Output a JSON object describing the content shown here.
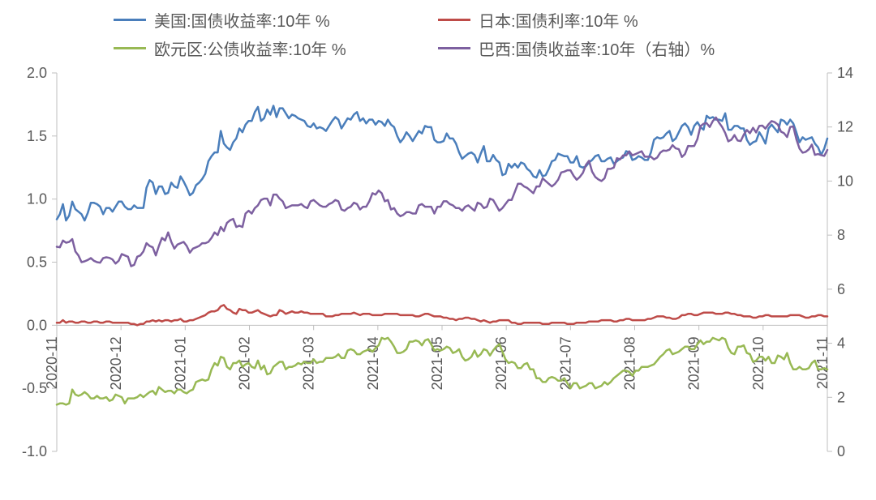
{
  "chart": {
    "type": "line",
    "background_color": "#ffffff",
    "axis_text_color": "#595959",
    "axis_line_color": "#bfbfbf",
    "line_width": 2.5,
    "label_fontsize": 18,
    "legend_fontsize": 20,
    "legend_position": "top",
    "left_axis": {
      "min": -1.0,
      "max": 2.0,
      "tick_step": 0.5,
      "ticks": [
        "2.0",
        "1.5",
        "1.0",
        "0.5",
        "0.0",
        "-0.5",
        "-1.0"
      ]
    },
    "right_axis": {
      "min": 0,
      "max": 14,
      "tick_step": 2,
      "ticks": [
        "14",
        "12",
        "10",
        "8",
        "6",
        "4",
        "2",
        "0"
      ]
    },
    "x_axis": {
      "labels": [
        "2020-11",
        "2020-12",
        "2021-01",
        "2021-02",
        "2021-03",
        "2021-04",
        "2021-05",
        "2021-06",
        "2021-07",
        "2021-08",
        "2021-09",
        "2021-10",
        "2021-11"
      ]
    },
    "series": [
      {
        "id": "us",
        "label": "美国:国债收益率:10年 %",
        "color": "#4a7ebb",
        "axis": "left",
        "values": [
          0.84,
          0.88,
          0.96,
          0.83,
          0.87,
          0.98,
          0.92,
          0.9,
          0.88,
          0.83,
          0.89,
          0.97,
          0.97,
          0.96,
          0.94,
          0.88,
          0.93,
          0.93,
          0.9,
          0.94,
          0.98,
          0.98,
          0.94,
          0.92,
          0.92,
          0.95,
          0.93,
          0.93,
          0.93,
          1.09,
          1.15,
          1.13,
          1.04,
          1.1,
          1.1,
          1.04,
          1.05,
          1.13,
          1.1,
          1.09,
          1.18,
          1.14,
          1.09,
          1.03,
          1.05,
          1.11,
          1.13,
          1.16,
          1.2,
          1.3,
          1.34,
          1.37,
          1.37,
          1.54,
          1.44,
          1.41,
          1.39,
          1.45,
          1.48,
          1.56,
          1.53,
          1.59,
          1.62,
          1.62,
          1.69,
          1.73,
          1.62,
          1.64,
          1.71,
          1.67,
          1.74,
          1.65,
          1.72,
          1.72,
          1.68,
          1.64,
          1.67,
          1.66,
          1.64,
          1.63,
          1.62,
          1.58,
          1.57,
          1.6,
          1.56,
          1.57,
          1.56,
          1.54,
          1.58,
          1.62,
          1.65,
          1.63,
          1.56,
          1.6,
          1.64,
          1.63,
          1.67,
          1.69,
          1.62,
          1.64,
          1.6,
          1.63,
          1.63,
          1.59,
          1.62,
          1.61,
          1.58,
          1.63,
          1.59,
          1.57,
          1.5,
          1.45,
          1.48,
          1.53,
          1.5,
          1.46,
          1.5,
          1.54,
          1.52,
          1.58,
          1.57,
          1.57,
          1.47,
          1.45,
          1.45,
          1.46,
          1.52,
          1.48,
          1.48,
          1.44,
          1.37,
          1.32,
          1.34,
          1.36,
          1.37,
          1.35,
          1.29,
          1.36,
          1.42,
          1.3,
          1.3,
          1.35,
          1.31,
          1.29,
          1.19,
          1.2,
          1.28,
          1.25,
          1.28,
          1.25,
          1.29,
          1.28,
          1.24,
          1.22,
          1.18,
          1.17,
          1.23,
          1.18,
          1.19,
          1.24,
          1.3,
          1.31,
          1.36,
          1.35,
          1.34,
          1.34,
          1.29,
          1.29,
          1.34,
          1.26,
          1.25,
          1.26,
          1.29,
          1.31,
          1.34,
          1.35,
          1.3,
          1.3,
          1.32,
          1.33,
          1.28,
          1.3,
          1.32,
          1.33,
          1.38,
          1.37,
          1.31,
          1.32,
          1.34,
          1.33,
          1.31,
          1.31,
          1.37,
          1.47,
          1.49,
          1.48,
          1.49,
          1.52,
          1.54,
          1.46,
          1.48,
          1.53,
          1.58,
          1.6,
          1.57,
          1.51,
          1.58,
          1.61,
          1.57,
          1.55,
          1.66,
          1.64,
          1.65,
          1.63,
          1.63,
          1.62,
          1.68,
          1.55,
          1.55,
          1.58,
          1.58,
          1.56,
          1.56,
          1.47,
          1.43,
          1.45,
          1.46,
          1.53,
          1.49,
          1.44,
          1.56,
          1.59,
          1.56,
          1.53,
          1.63,
          1.62,
          1.59,
          1.63,
          1.6,
          1.53,
          1.45,
          1.49,
          1.47,
          1.48,
          1.49,
          1.44,
          1.41,
          1.35,
          1.4,
          1.48
        ]
      },
      {
        "id": "japan",
        "label": "日本:国债利率:10年 %",
        "color": "#be4b48",
        "axis": "left",
        "values": [
          0.02,
          0.02,
          0.04,
          0.02,
          0.03,
          0.03,
          0.02,
          0.02,
          0.03,
          0.03,
          0.02,
          0.02,
          0.03,
          0.03,
          0.02,
          0.02,
          0.03,
          0.03,
          0.02,
          0.02,
          0.02,
          0.02,
          0.02,
          0.02,
          0.01,
          0.01,
          0.0,
          0.01,
          0.01,
          0.03,
          0.03,
          0.04,
          0.03,
          0.04,
          0.03,
          0.04,
          0.04,
          0.03,
          0.04,
          0.04,
          0.05,
          0.03,
          0.03,
          0.04,
          0.04,
          0.05,
          0.06,
          0.07,
          0.08,
          0.1,
          0.11,
          0.11,
          0.12,
          0.15,
          0.16,
          0.13,
          0.12,
          0.1,
          0.09,
          0.13,
          0.12,
          0.12,
          0.1,
          0.1,
          0.11,
          0.12,
          0.1,
          0.09,
          0.08,
          0.07,
          0.08,
          0.08,
          0.12,
          0.11,
          0.09,
          0.1,
          0.11,
          0.1,
          0.1,
          0.11,
          0.1,
          0.1,
          0.09,
          0.09,
          0.09,
          0.09,
          0.09,
          0.07,
          0.07,
          0.07,
          0.08,
          0.08,
          0.09,
          0.09,
          0.09,
          0.09,
          0.1,
          0.09,
          0.08,
          0.09,
          0.09,
          0.09,
          0.08,
          0.08,
          0.08,
          0.08,
          0.09,
          0.09,
          0.09,
          0.09,
          0.09,
          0.08,
          0.08,
          0.08,
          0.08,
          0.08,
          0.07,
          0.07,
          0.08,
          0.09,
          0.09,
          0.08,
          0.07,
          0.07,
          0.07,
          0.06,
          0.06,
          0.05,
          0.05,
          0.04,
          0.05,
          0.05,
          0.06,
          0.06,
          0.05,
          0.05,
          0.04,
          0.03,
          0.04,
          0.03,
          0.02,
          0.03,
          0.03,
          0.04,
          0.04,
          0.04,
          0.04,
          0.02,
          0.02,
          0.01,
          0.01,
          0.02,
          0.02,
          0.02,
          0.02,
          0.02,
          0.02,
          0.01,
          0.01,
          0.01,
          0.02,
          0.02,
          0.02,
          0.02,
          0.02,
          0.01,
          0.01,
          0.01,
          0.02,
          0.02,
          0.02,
          0.02,
          0.03,
          0.03,
          0.03,
          0.03,
          0.04,
          0.04,
          0.04,
          0.04,
          0.03,
          0.03,
          0.04,
          0.04,
          0.05,
          0.05,
          0.04,
          0.04,
          0.04,
          0.04,
          0.04,
          0.05,
          0.05,
          0.06,
          0.07,
          0.07,
          0.07,
          0.06,
          0.06,
          0.05,
          0.05,
          0.06,
          0.08,
          0.08,
          0.09,
          0.09,
          0.08,
          0.08,
          0.09,
          0.1,
          0.1,
          0.1,
          0.1,
          0.09,
          0.09,
          0.09,
          0.1,
          0.1,
          0.09,
          0.09,
          0.08,
          0.08,
          0.07,
          0.07,
          0.07,
          0.06,
          0.06,
          0.07,
          0.07,
          0.08,
          0.08,
          0.07,
          0.07,
          0.07,
          0.07,
          0.07,
          0.07,
          0.08,
          0.08,
          0.08,
          0.08,
          0.07,
          0.06,
          0.06,
          0.07,
          0.07,
          0.08,
          0.08,
          0.07,
          0.07
        ]
      },
      {
        "id": "eurozone",
        "label": "欧元区:公债收益率:10年 %",
        "color": "#98b954",
        "axis": "left",
        "values": [
          -0.63,
          -0.62,
          -0.62,
          -0.63,
          -0.62,
          -0.51,
          -0.55,
          -0.56,
          -0.55,
          -0.53,
          -0.55,
          -0.58,
          -0.58,
          -0.56,
          -0.58,
          -0.58,
          -0.57,
          -0.6,
          -0.59,
          -0.55,
          -0.56,
          -0.57,
          -0.62,
          -0.58,
          -0.58,
          -0.58,
          -0.57,
          -0.55,
          -0.57,
          -0.55,
          -0.53,
          -0.52,
          -0.55,
          -0.49,
          -0.51,
          -0.53,
          -0.52,
          -0.52,
          -0.54,
          -0.51,
          -0.51,
          -0.53,
          -0.54,
          -0.52,
          -0.51,
          -0.45,
          -0.44,
          -0.43,
          -0.44,
          -0.43,
          -0.35,
          -0.3,
          -0.32,
          -0.25,
          -0.26,
          -0.33,
          -0.35,
          -0.3,
          -0.3,
          -0.28,
          -0.33,
          -0.31,
          -0.3,
          -0.33,
          -0.34,
          -0.28,
          -0.35,
          -0.32,
          -0.39,
          -0.38,
          -0.33,
          -0.31,
          -0.29,
          -0.29,
          -0.35,
          -0.33,
          -0.33,
          -0.32,
          -0.3,
          -0.31,
          -0.29,
          -0.3,
          -0.3,
          -0.27,
          -0.3,
          -0.29,
          -0.29,
          -0.26,
          -0.26,
          -0.26,
          -0.25,
          -0.23,
          -0.26,
          -0.26,
          -0.2,
          -0.19,
          -0.2,
          -0.23,
          -0.23,
          -0.21,
          -0.2,
          -0.19,
          -0.21,
          -0.18,
          -0.16,
          -0.1,
          -0.11,
          -0.1,
          -0.13,
          -0.17,
          -0.22,
          -0.22,
          -0.21,
          -0.19,
          -0.13,
          -0.13,
          -0.12,
          -0.13,
          -0.16,
          -0.12,
          -0.11,
          -0.15,
          -0.2,
          -0.19,
          -0.2,
          -0.19,
          -0.17,
          -0.18,
          -0.22,
          -0.21,
          -0.19,
          -0.25,
          -0.28,
          -0.27,
          -0.25,
          -0.2,
          -0.25,
          -0.23,
          -0.19,
          -0.2,
          -0.24,
          -0.2,
          -0.17,
          -0.15,
          -0.21,
          -0.27,
          -0.3,
          -0.29,
          -0.3,
          -0.34,
          -0.34,
          -0.31,
          -0.3,
          -0.35,
          -0.35,
          -0.42,
          -0.42,
          -0.45,
          -0.45,
          -0.42,
          -0.41,
          -0.42,
          -0.44,
          -0.44,
          -0.42,
          -0.46,
          -0.5,
          -0.46,
          -0.46,
          -0.5,
          -0.49,
          -0.48,
          -0.46,
          -0.46,
          -0.5,
          -0.49,
          -0.48,
          -0.45,
          -0.47,
          -0.45,
          -0.42,
          -0.4,
          -0.38,
          -0.36,
          -0.36,
          -0.37,
          -0.4,
          -0.36,
          -0.36,
          -0.33,
          -0.33,
          -0.33,
          -0.32,
          -0.31,
          -0.28,
          -0.25,
          -0.23,
          -0.2,
          -0.19,
          -0.23,
          -0.22,
          -0.21,
          -0.19,
          -0.17,
          -0.17,
          -0.19,
          -0.19,
          -0.15,
          -0.12,
          -0.15,
          -0.13,
          -0.13,
          -0.1,
          -0.11,
          -0.12,
          -0.1,
          -0.11,
          -0.18,
          -0.22,
          -0.23,
          -0.17,
          -0.17,
          -0.16,
          -0.22,
          -0.23,
          -0.29,
          -0.28,
          -0.25,
          -0.25,
          -0.28,
          -0.25,
          -0.3,
          -0.3,
          -0.24,
          -0.25,
          -0.27,
          -0.22,
          -0.3,
          -0.35,
          -0.35,
          -0.33,
          -0.35,
          -0.35,
          -0.34,
          -0.3,
          -0.28,
          -0.35,
          -0.35,
          -0.34,
          -0.35
        ]
      },
      {
        "id": "brazil",
        "label": "巴西:国债收益率:10年（右轴）%",
        "color": "#7d60a0",
        "axis": "right",
        "values": [
          7.57,
          7.55,
          7.8,
          7.72,
          7.75,
          7.85,
          7.4,
          7.25,
          7.0,
          7.03,
          7.08,
          7.15,
          7.05,
          7.0,
          6.98,
          7.15,
          7.18,
          7.16,
          7.1,
          6.95,
          7.05,
          7.3,
          7.25,
          7.2,
          6.85,
          6.9,
          7.2,
          7.25,
          7.4,
          7.7,
          7.6,
          7.55,
          7.25,
          7.6,
          7.9,
          7.8,
          8.1,
          7.75,
          7.5,
          7.65,
          7.7,
          7.75,
          7.6,
          7.35,
          7.5,
          7.55,
          7.6,
          7.7,
          7.7,
          7.75,
          7.9,
          8.1,
          8.0,
          8.3,
          8.15,
          8.45,
          8.55,
          8.6,
          8.3,
          8.35,
          8.3,
          8.8,
          8.9,
          8.8,
          9.0,
          9.1,
          9.3,
          9.35,
          9.35,
          9.1,
          9.5,
          9.5,
          9.35,
          9.25,
          9.0,
          9.05,
          9.1,
          9.1,
          9.1,
          9.15,
          9.05,
          9.0,
          9.25,
          9.3,
          9.2,
          9.1,
          9.05,
          9.05,
          9.15,
          9.2,
          9.3,
          9.25,
          8.95,
          8.9,
          9.0,
          9.05,
          9.2,
          9.15,
          8.95,
          9.05,
          9.05,
          9.25,
          9.55,
          9.5,
          9.65,
          9.55,
          9.25,
          9.3,
          8.95,
          9.0,
          8.8,
          8.7,
          8.75,
          8.85,
          8.85,
          8.8,
          8.8,
          9.1,
          9.15,
          9.05,
          9.05,
          9.05,
          8.8,
          9.05,
          9.05,
          9.25,
          9.25,
          9.15,
          9.1,
          9.0,
          9.0,
          8.9,
          9.05,
          9.1,
          9.0,
          8.9,
          9.2,
          9.15,
          9.0,
          9.05,
          9.35,
          9.3,
          9.1,
          8.9,
          9.0,
          9.15,
          9.3,
          9.3,
          9.6,
          9.9,
          9.9,
          9.8,
          9.75,
          9.65,
          9.55,
          9.8,
          9.8,
          10.1,
          10.0,
          9.9,
          9.8,
          9.9,
          10.05,
          10.32,
          10.35,
          10.4,
          10.4,
          10.2,
          10.05,
          10.15,
          10.3,
          10.6,
          10.75,
          10.35,
          10.15,
          10.06,
          10.0,
          10.1,
          10.45,
          10.45,
          10.5,
          10.85,
          10.8,
          10.95,
          10.95,
          11.1,
          10.95,
          11.0,
          11.05,
          11.1,
          10.9,
          10.9,
          10.9,
          10.8,
          10.87,
          11.05,
          11.13,
          11.12,
          11.16,
          11.33,
          11.21,
          11.18,
          10.89,
          11.0,
          11.3,
          11.29,
          11.3,
          11.55,
          12.03,
          12.12,
          12.14,
          12.0,
          12.22,
          12.35,
          12.16,
          12.0,
          11.78,
          11.47,
          11.53,
          11.7,
          11.5,
          11.48,
          11.72,
          11.89,
          11.77,
          11.97,
          11.8,
          12.04,
          12.05,
          11.94,
          12.1,
          12.22,
          12.18,
          12.09,
          11.83,
          11.77,
          11.63,
          12.0,
          12.02,
          11.55,
          11.2,
          11.05,
          11.08,
          11.17,
          11.35,
          10.97,
          11.0,
          10.96,
          10.93,
          11.15
        ]
      }
    ]
  }
}
